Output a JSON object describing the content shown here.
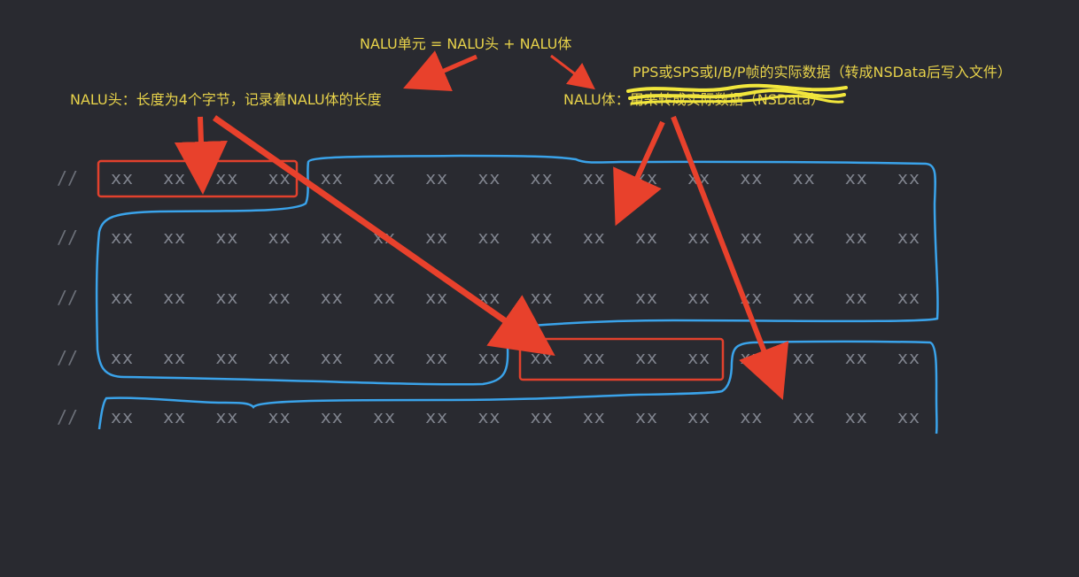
{
  "annotations": {
    "nalu_unit": "NALU单元 = NALU头 + NALU体",
    "nalu_header": "NALU头：长度为4个字节，记录着NALU体的长度",
    "nalu_body_prefix": "NALU体：",
    "nalu_body_struck": "用来转成实际数据（NSData）",
    "nalu_body_note": "PPS或SPS或I/B/P帧的实际数据（转成NSData后写入文件）"
  },
  "code": {
    "comment_marker": "//",
    "rows": [
      [
        "xx",
        "xx",
        "xx",
        "xx",
        "xx",
        "xx",
        "xx",
        "xx",
        "xx",
        "xx",
        "xx",
        "xx",
        "xx",
        "xx",
        "xx",
        "xx"
      ],
      [
        "xx",
        "xx",
        "xx",
        "xx",
        "xx",
        "xx",
        "xx",
        "xx",
        "xx",
        "xx",
        "xx",
        "xx",
        "xx",
        "xx",
        "xx",
        "xx"
      ],
      [
        "xx",
        "xx",
        "xx",
        "xx",
        "xx",
        "xx",
        "xx",
        "xx",
        "xx",
        "xx",
        "xx",
        "xx",
        "xx",
        "xx",
        "xx",
        "xx"
      ],
      [
        "xx",
        "xx",
        "xx",
        "xx",
        "xx",
        "xx",
        "xx",
        "xx",
        "xx",
        "xx",
        "xx",
        "xx",
        "xx",
        "xx",
        "xx",
        "xx"
      ],
      [
        "xx",
        "xx",
        "xx",
        "xx",
        "xx",
        "xx",
        "xx",
        "xx",
        "xx",
        "xx",
        "xx",
        "xx",
        "xx",
        "xx",
        "xx",
        "xx"
      ]
    ]
  },
  "colors": {
    "background": "#292a30",
    "annotation_text": "#e7d24a",
    "scribble": "#f1e63c",
    "header_box": "#e2412d",
    "arrow": "#e8412c",
    "body_outline": "#3aa3ea",
    "code_text": "#80848e"
  }
}
